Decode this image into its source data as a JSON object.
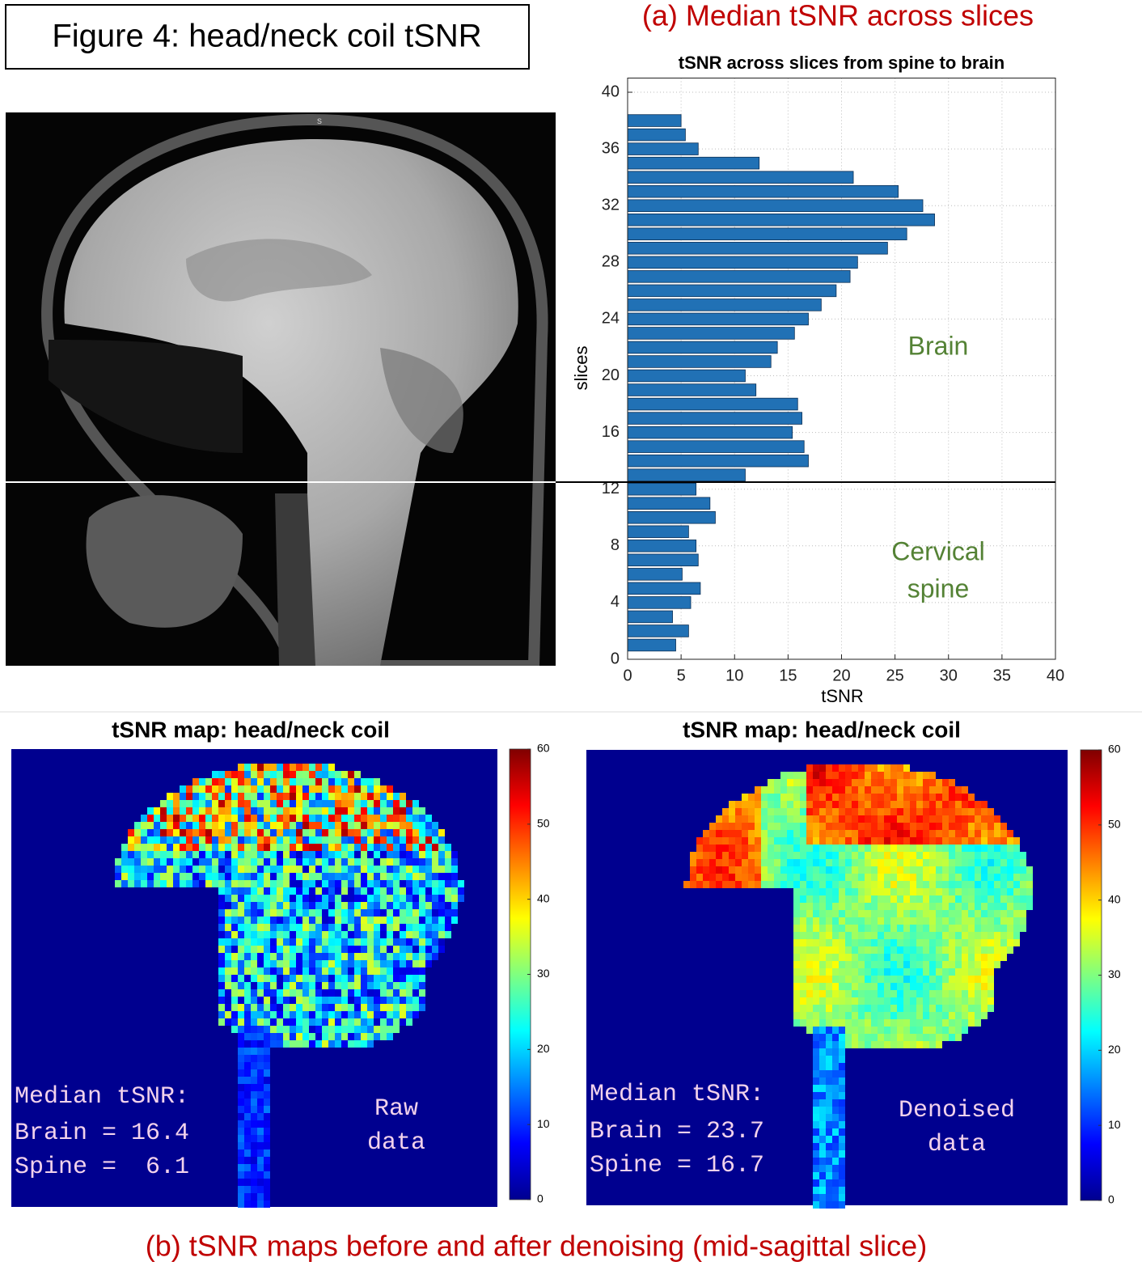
{
  "figure_title": "Figure 4: head/neck coil tSNR",
  "panel_a_title": "(a) Median tSNR across slices",
  "panel_b_title": "(b) tSNR maps before and after denoising (mid-sagittal slice)",
  "chart_data": {
    "type": "bar",
    "orientation": "horizontal",
    "title": "tSNR across slices from spine to brain",
    "x_label": "tSNR",
    "y_label": "slices",
    "y": [
      1,
      2,
      3,
      4,
      5,
      6,
      7,
      8,
      9,
      10,
      11,
      12,
      13,
      14,
      15,
      16,
      17,
      18,
      19,
      20,
      21,
      22,
      23,
      24,
      25,
      26,
      27,
      28,
      29,
      30,
      31,
      32,
      33,
      34,
      35,
      36,
      37,
      38
    ],
    "values": [
      4.5,
      5.7,
      4.2,
      5.9,
      6.8,
      5.1,
      6.6,
      6.4,
      5.7,
      8.2,
      7.7,
      6.4,
      11.0,
      16.9,
      16.5,
      15.4,
      16.3,
      15.9,
      12.0,
      11.0,
      13.4,
      14.0,
      15.6,
      16.9,
      18.1,
      19.5,
      20.8,
      21.5,
      24.3,
      26.1,
      28.7,
      27.6,
      25.3,
      21.1,
      12.3,
      6.6,
      5.4,
      5.0
    ],
    "color": "#2171b5",
    "xlim": [
      0,
      40
    ],
    "xticks": [
      0,
      5,
      10,
      15,
      20,
      25,
      30,
      35,
      40
    ],
    "ylim": [
      0,
      41
    ],
    "yticks": [
      0,
      4,
      8,
      12,
      16,
      20,
      24,
      28,
      32,
      36,
      40
    ],
    "grid": true,
    "divider": 12.5,
    "annotations": [
      "Brain",
      "Cervical",
      "spine"
    ],
    "annotation_color": "#548235"
  },
  "colorbar": {
    "lim": [
      0,
      60
    ],
    "ticks": [
      0,
      10,
      20,
      30,
      40,
      50,
      60
    ]
  },
  "maps": [
    {
      "title": "tSNR map: head/neck coil",
      "stats": [
        "Median tSNR:",
        "Brain = 16.4",
        "Spine =  6.1"
      ],
      "label": [
        "Raw",
        "data"
      ]
    },
    {
      "title": "tSNR map: head/neck coil",
      "stats": [
        "Median tSNR:",
        "Brain = 23.7",
        "Spine = 16.7"
      ],
      "label": [
        "Denoised",
        "data"
      ]
    }
  ]
}
